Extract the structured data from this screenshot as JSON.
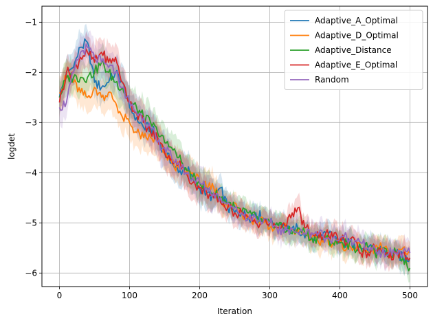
{
  "chart_data": {
    "type": "line",
    "xlabel": "Iteration",
    "ylabel": "logdet",
    "xlim": [
      -25,
      525
    ],
    "ylim": [
      -6.27,
      -0.68
    ],
    "xticks": [
      "0",
      "100",
      "200",
      "300",
      "400",
      "500"
    ],
    "yticks": [
      "−1",
      "−2",
      "−3",
      "−4",
      "−5",
      "−6"
    ],
    "grid": true,
    "legend_position": "top-right",
    "series": [
      {
        "name": "Adaptive_A_Optimal",
        "color": "#1f77b4",
        "x": [
          0,
          10,
          20,
          30,
          40,
          50,
          60,
          70,
          80,
          90,
          100,
          110,
          120,
          130,
          140,
          150,
          160,
          170,
          180,
          190,
          200,
          210,
          220,
          230,
          240,
          250,
          260,
          270,
          280,
          290,
          300,
          310,
          320,
          330,
          340,
          350,
          360,
          370,
          380,
          390,
          400,
          410,
          420,
          430,
          440,
          450,
          460,
          470,
          480,
          490,
          500
        ],
        "y": [
          -2.5,
          -2.0,
          -1.9,
          -1.5,
          -1.4,
          -2.2,
          -2.3,
          -2.2,
          -2.0,
          -2.2,
          -2.7,
          -2.9,
          -3.1,
          -3.1,
          -3.3,
          -3.6,
          -3.8,
          -4.0,
          -3.9,
          -4.1,
          -4.3,
          -4.4,
          -4.5,
          -4.3,
          -4.7,
          -4.8,
          -4.8,
          -4.9,
          -4.8,
          -4.9,
          -5.0,
          -5.0,
          -5.0,
          -5.2,
          -5.1,
          -5.3,
          -5.3,
          -5.3,
          -5.2,
          -5.3,
          -5.4,
          -5.4,
          -5.4,
          -5.5,
          -5.5,
          -5.6,
          -5.5,
          -5.6,
          -5.6,
          -5.7,
          -5.7
        ]
      },
      {
        "name": "Adaptive_D_Optimal",
        "color": "#ff7f0e",
        "x": [
          0,
          10,
          20,
          30,
          40,
          50,
          60,
          70,
          80,
          90,
          100,
          110,
          120,
          130,
          140,
          150,
          160,
          170,
          180,
          190,
          200,
          210,
          220,
          230,
          240,
          250,
          260,
          270,
          280,
          290,
          300,
          310,
          320,
          330,
          340,
          350,
          360,
          370,
          380,
          390,
          400,
          410,
          420,
          430,
          440,
          450,
          460,
          470,
          480,
          490,
          500
        ],
        "y": [
          -2.4,
          -2.1,
          -2.2,
          -2.4,
          -2.5,
          -2.3,
          -2.5,
          -2.4,
          -2.6,
          -2.9,
          -3.0,
          -3.2,
          -3.3,
          -3.3,
          -3.4,
          -3.6,
          -3.8,
          -3.9,
          -4.0,
          -4.0,
          -4.2,
          -4.3,
          -4.3,
          -4.5,
          -4.7,
          -4.6,
          -4.8,
          -4.9,
          -5.0,
          -4.9,
          -5.1,
          -5.1,
          -5.1,
          -5.1,
          -5.2,
          -5.2,
          -5.3,
          -5.4,
          -5.3,
          -5.4,
          -5.4,
          -5.5,
          -5.5,
          -5.5,
          -5.6,
          -5.5,
          -5.5,
          -5.6,
          -5.6,
          -5.5,
          -5.6
        ]
      },
      {
        "name": "Adaptive_Distance",
        "color": "#2ca02c",
        "x": [
          0,
          10,
          20,
          30,
          40,
          50,
          60,
          70,
          80,
          90,
          100,
          110,
          120,
          130,
          140,
          150,
          160,
          170,
          180,
          190,
          200,
          210,
          220,
          230,
          240,
          250,
          260,
          270,
          280,
          290,
          300,
          310,
          320,
          330,
          340,
          350,
          360,
          370,
          380,
          390,
          400,
          410,
          420,
          430,
          440,
          450,
          460,
          470,
          480,
          490,
          500
        ],
        "y": [
          -2.5,
          -2.1,
          -2.1,
          -2.1,
          -2.1,
          -2.0,
          -1.8,
          -2.0,
          -2.2,
          -2.3,
          -2.6,
          -2.7,
          -2.9,
          -3.0,
          -3.2,
          -3.4,
          -3.5,
          -3.7,
          -3.9,
          -4.1,
          -4.2,
          -4.3,
          -4.4,
          -4.5,
          -4.6,
          -4.7,
          -4.8,
          -4.8,
          -4.9,
          -5.0,
          -5.0,
          -5.0,
          -5.1,
          -5.2,
          -5.1,
          -5.2,
          -5.3,
          -5.3,
          -5.3,
          -5.4,
          -5.4,
          -5.4,
          -5.5,
          -5.5,
          -5.5,
          -5.6,
          -5.6,
          -5.6,
          -5.6,
          -5.7,
          -5.9
        ]
      },
      {
        "name": "Adaptive_E_Optimal",
        "color": "#d62728",
        "x": [
          0,
          10,
          20,
          30,
          40,
          50,
          60,
          70,
          80,
          90,
          100,
          110,
          120,
          130,
          140,
          150,
          160,
          170,
          180,
          190,
          200,
          210,
          220,
          230,
          240,
          250,
          260,
          270,
          280,
          290,
          300,
          310,
          320,
          330,
          340,
          350,
          360,
          370,
          380,
          390,
          400,
          410,
          420,
          430,
          440,
          450,
          460,
          470,
          480,
          490,
          500
        ],
        "y": [
          -2.6,
          -2.0,
          -2.0,
          -1.7,
          -1.6,
          -1.8,
          -1.6,
          -1.8,
          -1.7,
          -2.2,
          -2.6,
          -2.8,
          -3.0,
          -3.2,
          -3.3,
          -3.6,
          -3.7,
          -3.8,
          -4.0,
          -4.2,
          -4.3,
          -4.4,
          -4.5,
          -4.6,
          -4.7,
          -4.8,
          -4.8,
          -4.9,
          -5.0,
          -5.0,
          -5.0,
          -5.1,
          -5.0,
          -4.9,
          -4.7,
          -5.1,
          -5.2,
          -5.3,
          -5.2,
          -5.3,
          -5.3,
          -5.4,
          -5.3,
          -5.6,
          -5.6,
          -5.5,
          -5.6,
          -5.7,
          -5.6,
          -5.6,
          -5.7
        ]
      },
      {
        "name": "Random",
        "color": "#9467bd",
        "x": [
          0,
          10,
          20,
          30,
          40,
          50,
          60,
          70,
          80,
          90,
          100,
          110,
          120,
          130,
          140,
          150,
          160,
          170,
          180,
          190,
          200,
          210,
          220,
          230,
          240,
          250,
          260,
          270,
          280,
          290,
          300,
          310,
          320,
          330,
          340,
          350,
          360,
          370,
          380,
          390,
          400,
          410,
          420,
          430,
          440,
          450,
          460,
          470,
          480,
          490,
          500
        ],
        "y": [
          -2.7,
          -2.6,
          -2.0,
          -1.6,
          -1.5,
          -1.7,
          -1.8,
          -1.9,
          -2.0,
          -2.3,
          -2.6,
          -2.8,
          -2.9,
          -3.1,
          -3.4,
          -3.5,
          -3.7,
          -3.8,
          -4.0,
          -4.1,
          -4.2,
          -4.3,
          -4.4,
          -4.5,
          -4.6,
          -4.7,
          -4.8,
          -4.9,
          -4.9,
          -5.0,
          -5.0,
          -5.1,
          -5.2,
          -5.1,
          -5.2,
          -5.2,
          -5.2,
          -5.2,
          -5.3,
          -5.3,
          -5.3,
          -5.3,
          -5.4,
          -5.4,
          -5.5,
          -5.5,
          -5.6,
          -5.6,
          -5.6,
          -5.6,
          -5.6
        ]
      }
    ]
  }
}
